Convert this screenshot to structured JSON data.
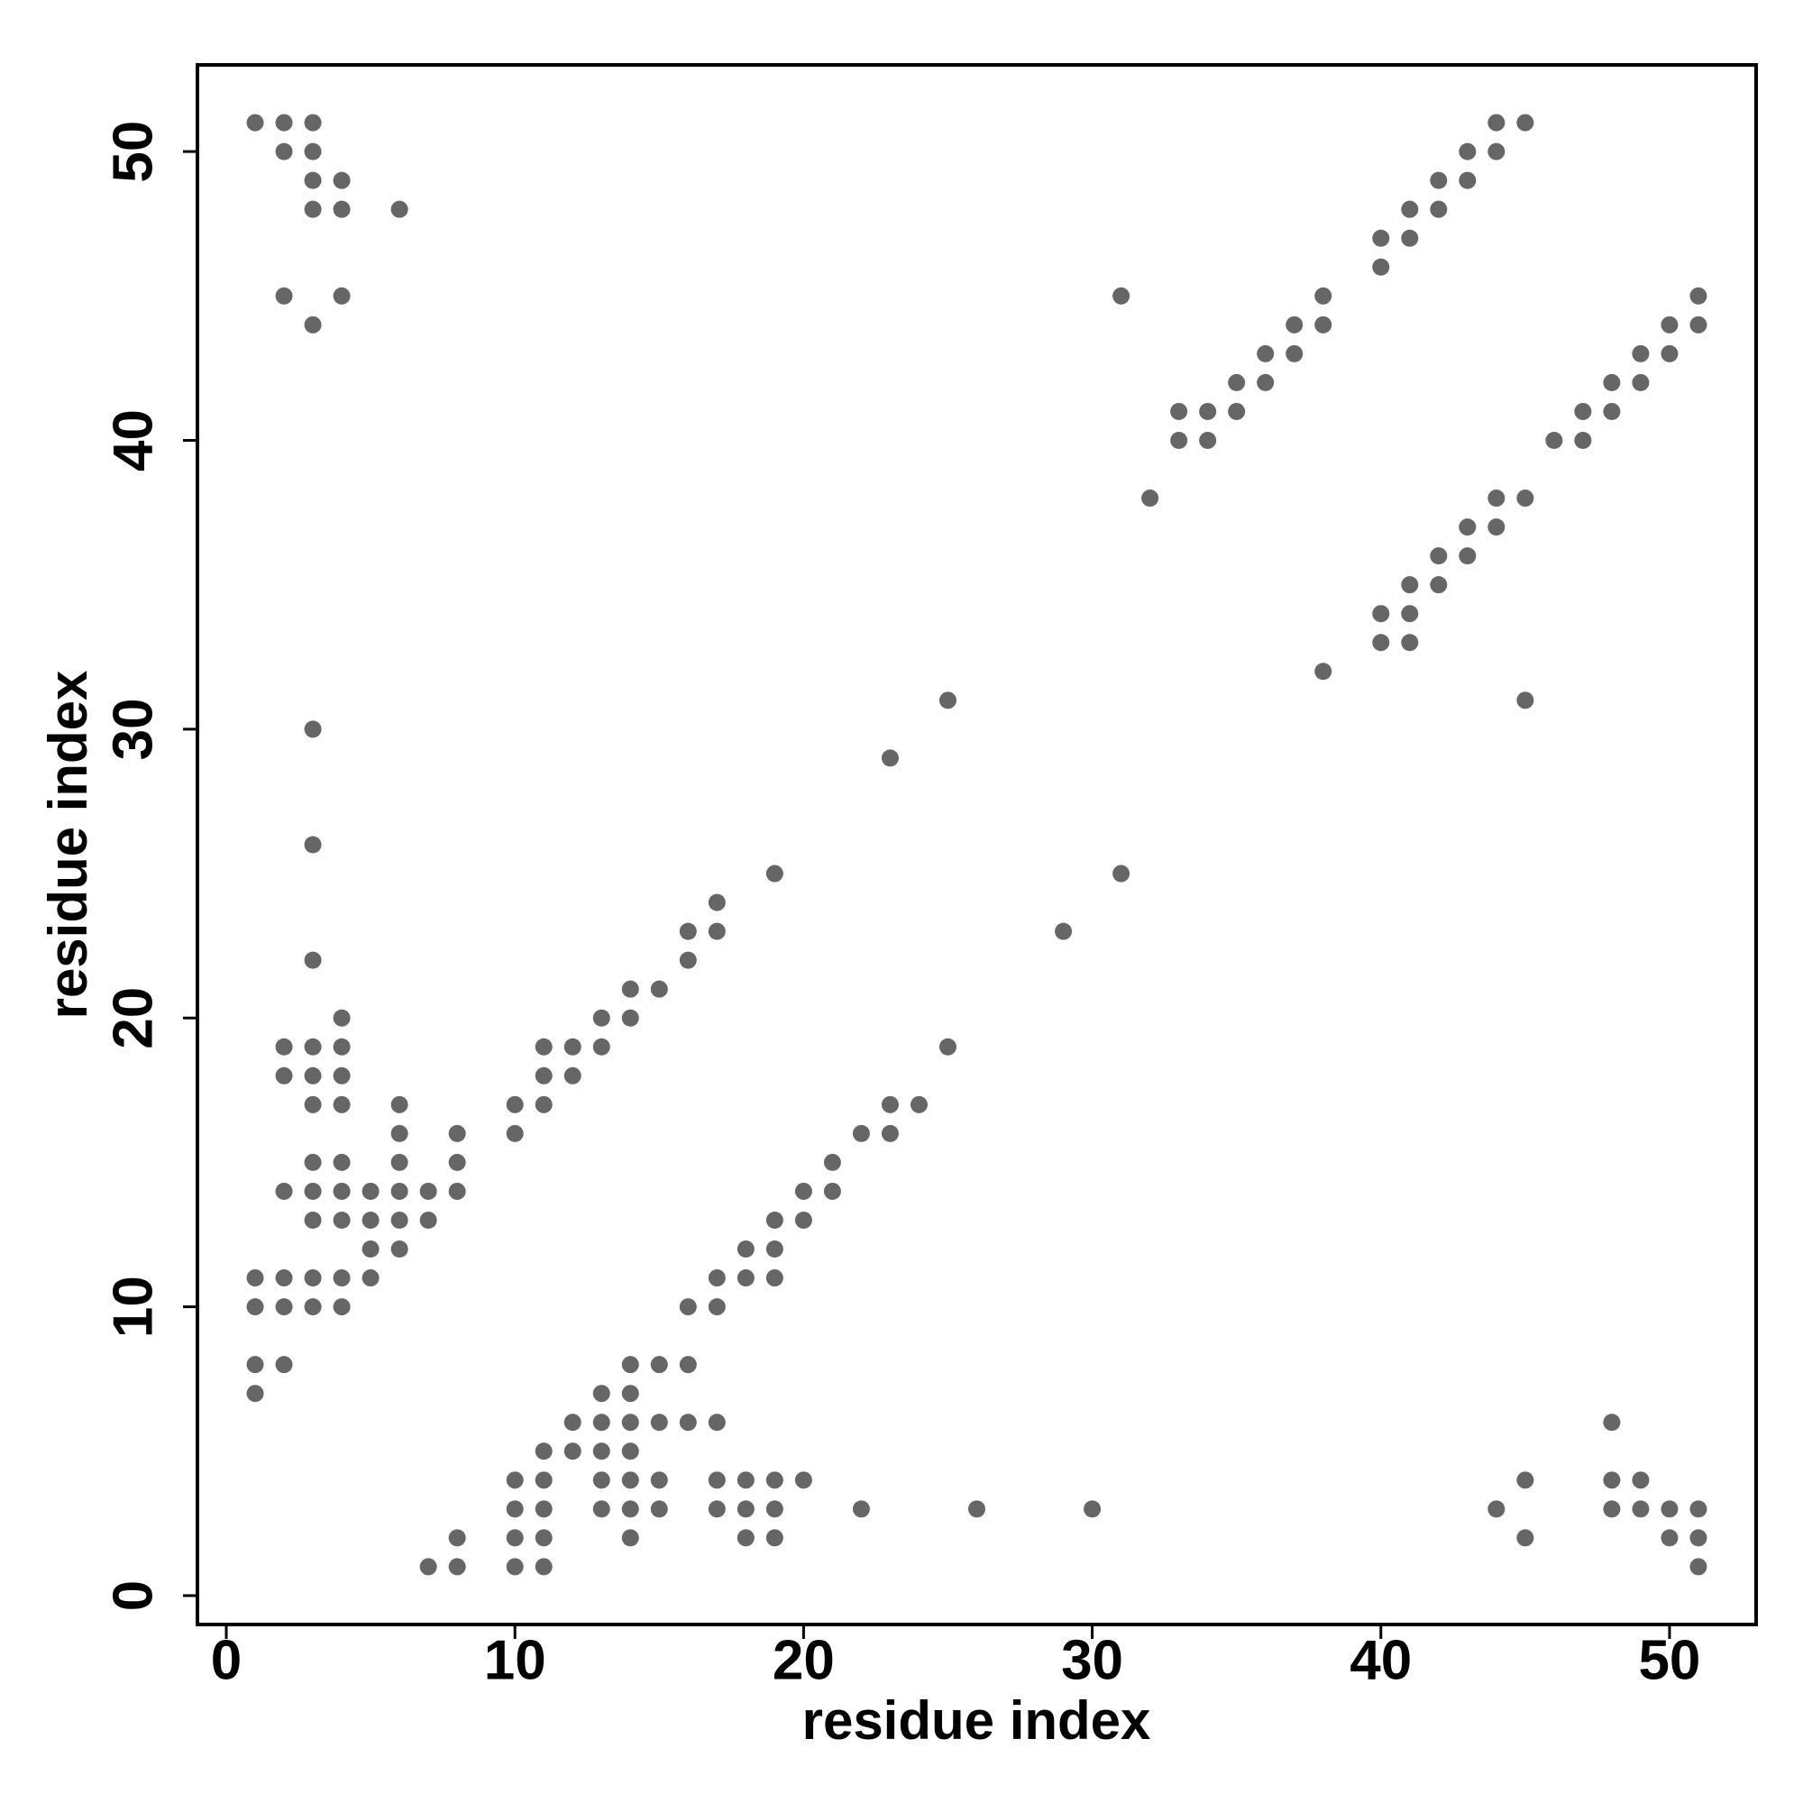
{
  "chart_data": {
    "type": "scatter",
    "x_label": "residue index",
    "y_label": "residue index",
    "color": "#666666",
    "xlim": [
      -1,
      53
    ],
    "ylim": [
      -1,
      53
    ],
    "xticks": [
      0,
      10,
      20,
      30,
      40,
      50
    ],
    "yticks": [
      0,
      10,
      20,
      30,
      40,
      50
    ],
    "x": [
      1,
      1,
      1,
      1,
      1,
      2,
      2,
      2,
      2,
      2,
      2,
      2,
      2,
      2,
      3,
      3,
      3,
      3,
      3,
      3,
      3,
      3,
      3,
      3,
      3,
      3,
      3,
      3,
      3,
      3,
      4,
      4,
      4,
      4,
      4,
      4,
      4,
      4,
      4,
      4,
      4,
      4,
      5,
      5,
      5,
      5,
      6,
      6,
      6,
      6,
      6,
      6,
      6,
      7,
      7,
      7,
      8,
      8,
      8,
      8,
      8,
      10,
      10,
      10,
      10,
      10,
      10,
      11,
      11,
      11,
      11,
      11,
      11,
      11,
      11,
      12,
      12,
      12,
      12,
      13,
      13,
      13,
      13,
      13,
      13,
      13,
      14,
      14,
      14,
      14,
      14,
      14,
      14,
      14,
      14,
      15,
      15,
      15,
      15,
      15,
      16,
      16,
      16,
      16,
      16,
      17,
      17,
      17,
      17,
      17,
      17,
      17,
      18,
      18,
      18,
      18,
      18,
      19,
      19,
      19,
      19,
      19,
      19,
      19,
      20,
      20,
      20,
      21,
      21,
      22,
      22,
      23,
      23,
      23,
      24,
      25,
      25,
      26,
      29,
      30,
      31,
      31,
      32,
      33,
      33,
      34,
      34,
      35,
      35,
      36,
      36,
      37,
      37,
      38,
      38,
      38,
      40,
      40,
      40,
      40,
      41,
      41,
      41,
      41,
      41,
      42,
      42,
      42,
      42,
      43,
      43,
      43,
      43,
      44,
      44,
      44,
      44,
      44,
      45,
      45,
      45,
      45,
      45,
      46,
      47,
      47,
      48,
      48,
      48,
      48,
      48,
      49,
      49,
      49,
      49,
      50,
      50,
      50,
      50,
      51,
      51,
      51,
      51,
      51
    ],
    "y": [
      51,
      11,
      10,
      8,
      7,
      51,
      50,
      45,
      19,
      18,
      14,
      11,
      10,
      8,
      51,
      50,
      49,
      48,
      44,
      30,
      26,
      22,
      19,
      18,
      17,
      15,
      14,
      13,
      11,
      10,
      49,
      48,
      45,
      20,
      19,
      18,
      17,
      15,
      14,
      13,
      11,
      10,
      14,
      13,
      12,
      11,
      48,
      17,
      16,
      15,
      14,
      13,
      12,
      14,
      13,
      1,
      16,
      15,
      14,
      2,
      1,
      17,
      16,
      4,
      3,
      2,
      1,
      19,
      18,
      17,
      5,
      4,
      3,
      2,
      1,
      19,
      18,
      6,
      5,
      20,
      19,
      7,
      6,
      5,
      4,
      3,
      21,
      20,
      8,
      7,
      6,
      5,
      4,
      3,
      2,
      21,
      8,
      6,
      4,
      3,
      23,
      22,
      10,
      8,
      6,
      24,
      23,
      11,
      10,
      6,
      4,
      3,
      12,
      11,
      4,
      3,
      2,
      25,
      13,
      12,
      11,
      4,
      3,
      2,
      14,
      13,
      4,
      15,
      14,
      16,
      3,
      29,
      17,
      16,
      17,
      31,
      19,
      3,
      23,
      3,
      45,
      25,
      38,
      41,
      40,
      41,
      40,
      42,
      41,
      43,
      42,
      44,
      43,
      45,
      44,
      32,
      47,
      46,
      34,
      33,
      48,
      47,
      35,
      34,
      33,
      49,
      48,
      36,
      35,
      50,
      49,
      37,
      36,
      51,
      50,
      38,
      37,
      3,
      51,
      38,
      31,
      4,
      2,
      40,
      41,
      40,
      42,
      41,
      6,
      4,
      3,
      43,
      42,
      4,
      3,
      44,
      43,
      3,
      2,
      45,
      44,
      3,
      2,
      1
    ]
  }
}
